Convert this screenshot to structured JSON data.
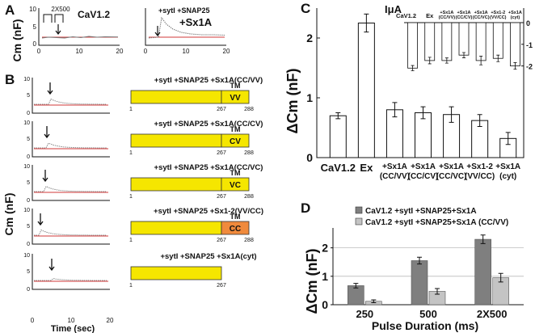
{
  "panels": {
    "A": {
      "letter": "A",
      "ylabel": "Cm (nF)",
      "protocol_label": "2X500",
      "left": {
        "label": "CaV1.2",
        "yticks": [
          "10",
          "5",
          "0"
        ],
        "xticks": [
          "0",
          "10",
          "20"
        ]
      },
      "right": {
        "label_line1": "+sytI +SNAP25",
        "label_line2": "+Sx1A",
        "xticks": [
          "0",
          "10",
          "20"
        ]
      }
    },
    "B": {
      "letter": "B",
      "ylabel": "Cm (nF)",
      "xlabel": "Time (sec)",
      "yticks": [
        "10",
        "5",
        "0"
      ],
      "xticks": [
        "0",
        "10",
        "20"
      ],
      "rows": [
        {
          "label": "+sytI +SNAP25 +Sx1A(CC/VV)",
          "tm": "TM",
          "box": "VV",
          "end": "288",
          "mid": "267",
          "start": "1",
          "color": "#f5e600",
          "box_color": "#f5e600"
        },
        {
          "label": "+sytI +SNAP25 +Sx1A(CC/CV)",
          "tm": "TM",
          "box": "CV",
          "end": "288",
          "mid": "267",
          "start": "1",
          "color": "#f5e600",
          "box_color": "#f5e600"
        },
        {
          "label": "+sytI +SNAP25 +Sx1A(CC/VC)",
          "tm": "TM",
          "box": "VC",
          "end": "288",
          "mid": "267",
          "start": "1",
          "color": "#f5e600",
          "box_color": "#f5e600"
        },
        {
          "label": "+sytI +SNAP25 +Sx1-2(VV/CC)",
          "tm": "TM",
          "box": "CC",
          "end": "288",
          "mid": "267",
          "start": "1",
          "color": "#f5e600",
          "box_color": "#f08a3c"
        },
        {
          "label": "+sytI +SNAP25 +Sx1A(cyt)",
          "tm": "",
          "box": "",
          "end": "",
          "mid": "267",
          "start": "1",
          "color": "#f5e600",
          "box_color": ""
        }
      ]
    },
    "C": {
      "letter": "C",
      "ylabel": "ΔCm (nF)",
      "inset_label": "IμA",
      "x_labels": [
        [
          "CaV1.2"
        ],
        [
          "Ex"
        ],
        [
          "+Sx1A",
          "(CC/VV)"
        ],
        [
          "+Sx1A",
          "(CC/CV)"
        ],
        [
          "+Sx1A",
          "(CC/VC)"
        ],
        [
          "+Sx1-2",
          "(VV/CC)"
        ],
        [
          "+Sx1A",
          "(cyt)"
        ]
      ],
      "inset_x_labels": [
        [
          "CaV1.2"
        ],
        [
          "Ex"
        ],
        [
          "+Sx1A",
          "(CC/VV)"
        ],
        [
          "+Sx1A",
          "(CC/CV)"
        ],
        [
          "+Sx1A",
          "(CC/VC)"
        ],
        [
          "+Sx1-2",
          "(VV/CC)"
        ],
        [
          "+Sx1A",
          "(cyt)"
        ]
      ],
      "inset_yticks": [
        "0",
        "-1",
        "-2"
      ],
      "yticks": [
        "0",
        "1",
        "2"
      ]
    },
    "D": {
      "letter": "D",
      "ylabel": "ΔCm (nF)",
      "xlabel": "Pulse Duration (ms)",
      "yticks": [
        "0",
        "1",
        "2"
      ],
      "legend": [
        "CaV1.2 +sytI +SNAP25+Sx1A",
        "CaV1.2 +sytI +SNAP25+Sx1A (CC/VV)"
      ]
    }
  },
  "chart_data": [
    {
      "type": "bar",
      "panel": "C",
      "categories": [
        "CaV1.2",
        "Ex",
        "+Sx1A (CC/VV)",
        "+Sx1A (CC/CV)",
        "+Sx1A (CC/VC)",
        "+Sx1-2 (VV/CC)",
        "+Sx1A (cyt)"
      ],
      "values": [
        0.7,
        2.25,
        0.8,
        0.75,
        0.72,
        0.62,
        0.32
      ],
      "errors": [
        0.05,
        0.15,
        0.12,
        0.1,
        0.13,
        0.1,
        0.1
      ],
      "ylim": [
        0,
        2.5
      ],
      "color": "#ffffff"
    },
    {
      "type": "bar",
      "panel": "C-inset",
      "categories": [
        "CaV1.2",
        "Ex",
        "+Sx1A (CC/VV)",
        "+Sx1A (CC/CV)",
        "+Sx1A (CC/VC)",
        "+Sx1-2 (VV/CC)",
        "+Sx1A (cyt)"
      ],
      "values": [
        -2.1,
        -1.75,
        -1.75,
        -1.5,
        -1.75,
        -1.65,
        -2.0
      ],
      "errors": [
        0.12,
        0.15,
        0.12,
        0.12,
        0.2,
        0.15,
        0.15
      ],
      "ylim": [
        -2.5,
        0
      ],
      "color": "#ffffff"
    },
    {
      "type": "bar",
      "panel": "D",
      "categories": [
        "250",
        "500",
        "2X500"
      ],
      "series": [
        {
          "name": "CaV1.2 +sytI +SNAP25+Sx1A",
          "values": [
            0.67,
            1.55,
            2.3
          ],
          "errors": [
            0.08,
            0.12,
            0.15
          ],
          "color": "#7f7f7f"
        },
        {
          "name": "CaV1.2 +sytI +SNAP25+Sx1A (CC/VV)",
          "values": [
            0.12,
            0.47,
            0.95
          ],
          "errors": [
            0.05,
            0.1,
            0.15
          ],
          "color": "#c4c4c4"
        }
      ],
      "ylim": [
        0,
        2.7
      ]
    }
  ]
}
